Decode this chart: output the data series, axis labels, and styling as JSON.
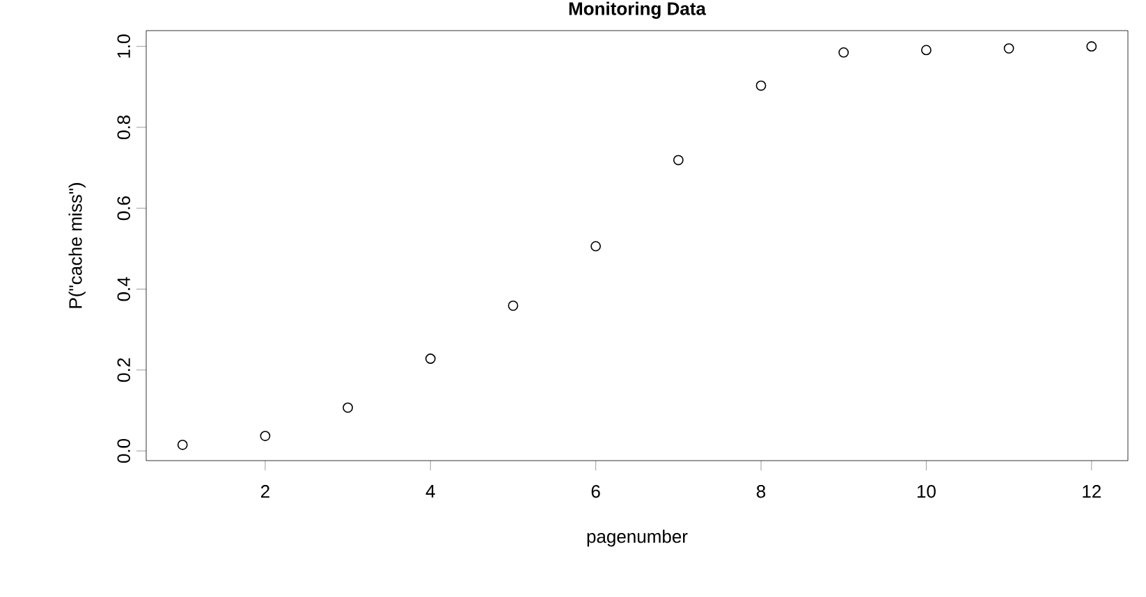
{
  "chart_data": {
    "type": "scatter",
    "title": "Monitoring Data",
    "xlabel": "pagenumber",
    "ylabel": "P(\"cache miss\")",
    "x": [
      1,
      2,
      3,
      4,
      5,
      6,
      7,
      8,
      9,
      10,
      11,
      12
    ],
    "series": [
      {
        "color": "#000000",
        "values": [
          0.015,
          0.037,
          0.107,
          0.228,
          0.359,
          0.506,
          0.719,
          0.903,
          0.985,
          0.991,
          0.995,
          1.0
        ]
      }
    ],
    "xlim": [
      0.56,
      12.44
    ],
    "ylim": [
      -0.024,
      1.039
    ],
    "xticks": [
      2,
      4,
      6,
      8,
      10,
      12
    ],
    "yticks": [
      {
        "value": 0,
        "label": "0.0"
      },
      0.2,
      0.4,
      0.6,
      0.8,
      {
        "value": 1,
        "label": "1.0"
      }
    ],
    "marker": "circle",
    "grid": false
  }
}
